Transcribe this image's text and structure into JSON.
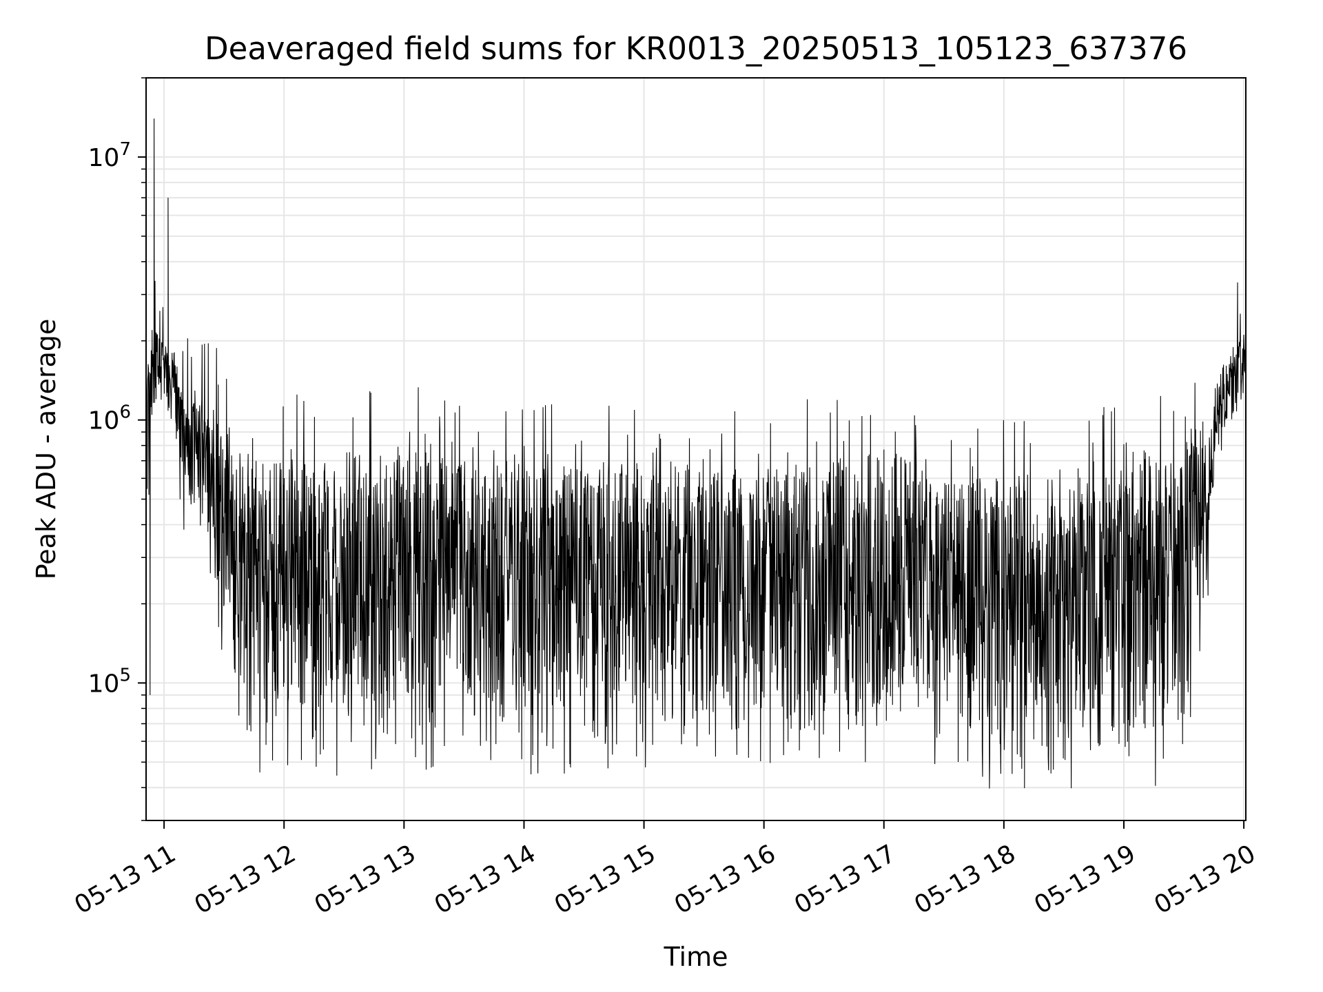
{
  "chart_data": {
    "type": "line",
    "title": "Deaveraged field sums for KR0013_20250513_105123_637376",
    "xlabel": "Time",
    "ylabel": "Peak ADU - average",
    "yscale": "log",
    "xlim": [
      "2025-05-13 10:51",
      "2025-05-13 20:01"
    ],
    "ylim": [
      30000,
      20000000
    ],
    "grid": true,
    "line_color": "#000000",
    "x_ticks": [
      {
        "time": "2025-05-13 11:00",
        "label": "05-13 11"
      },
      {
        "time": "2025-05-13 12:00",
        "label": "05-13 12"
      },
      {
        "time": "2025-05-13 13:00",
        "label": "05-13 13"
      },
      {
        "time": "2025-05-13 14:00",
        "label": "05-13 14"
      },
      {
        "time": "2025-05-13 15:00",
        "label": "05-13 15"
      },
      {
        "time": "2025-05-13 16:00",
        "label": "05-13 16"
      },
      {
        "time": "2025-05-13 17:00",
        "label": "05-13 17"
      },
      {
        "time": "2025-05-13 18:00",
        "label": "05-13 18"
      },
      {
        "time": "2025-05-13 19:00",
        "label": "05-13 19"
      },
      {
        "time": "2025-05-13 20:00",
        "label": "05-13 20"
      }
    ],
    "y_ticks": [
      {
        "value": 100000,
        "base": "10",
        "exp": "5"
      },
      {
        "value": 1000000,
        "base": "10",
        "exp": "6"
      },
      {
        "value": 10000000,
        "base": "10",
        "exp": "7"
      }
    ],
    "series": [
      {
        "x": [
          "2025-05-13 10:51",
          "2025-05-13 10:52",
          "2025-05-13 10:53",
          "2025-05-13 10:54",
          "2025-05-13 10:55",
          "2025-05-13 10:56",
          "2025-05-13 10:57",
          "2025-05-13 10:58",
          "2025-05-13 11:00",
          "2025-05-13 11:02",
          "2025-05-13 11:04",
          "2025-05-13 11:06",
          "2025-05-13 11:08",
          "2025-05-13 11:10",
          "2025-05-13 11:15",
          "2025-05-13 11:20",
          "2025-05-13 11:25",
          "2025-05-13 11:30",
          "2025-05-13 11:35",
          "2025-05-13 11:40",
          "2025-05-13 11:45",
          "2025-05-13 11:50",
          "2025-05-13 11:55",
          "2025-05-13 12:00",
          "2025-05-13 12:15",
          "2025-05-13 12:30",
          "2025-05-13 12:45",
          "2025-05-13 13:00",
          "2025-05-13 13:15",
          "2025-05-13 13:30",
          "2025-05-13 13:45",
          "2025-05-13 14:00",
          "2025-05-13 14:15",
          "2025-05-13 14:30",
          "2025-05-13 14:45",
          "2025-05-13 15:00",
          "2025-05-13 15:15",
          "2025-05-13 15:30",
          "2025-05-13 15:45",
          "2025-05-13 16:00",
          "2025-05-13 16:15",
          "2025-05-13 16:30",
          "2025-05-13 16:45",
          "2025-05-13 17:00",
          "2025-05-13 17:15",
          "2025-05-13 17:30",
          "2025-05-13 17:45",
          "2025-05-13 18:00",
          "2025-05-13 18:15",
          "2025-05-13 18:30",
          "2025-05-13 18:45",
          "2025-05-13 19:00",
          "2025-05-13 19:10",
          "2025-05-13 19:20",
          "2025-05-13 19:30",
          "2025-05-13 19:40",
          "2025-05-13 19:45",
          "2025-05-13 19:50",
          "2025-05-13 19:55",
          "2025-05-13 20:01"
        ],
        "values": [
          400000,
          1500000,
          90000,
          2200000,
          14000000,
          1200000,
          1500000,
          1800000,
          1600000,
          7000000,
          1800000,
          1500000,
          500000,
          1100000,
          900000,
          1000000,
          400000,
          200000,
          150000,
          100000,
          90000,
          120000,
          110000,
          100000,
          110000,
          180000,
          150000,
          120000,
          150000,
          250000,
          200000,
          100000,
          120000,
          180000,
          150000,
          110000,
          200000,
          250000,
          200000,
          150000,
          200000,
          220000,
          180000,
          200000,
          300000,
          250000,
          120000,
          100000,
          80000,
          70000,
          80000,
          70000,
          70000,
          80000,
          150000,
          500000,
          1000000,
          1200000,
          1600000,
          1500000
        ]
      }
    ],
    "envelope": {
      "x": [
        "2025-05-13 10:51",
        "2025-05-13 10:55",
        "2025-05-13 11:00",
        "2025-05-13 11:05",
        "2025-05-13 11:10",
        "2025-05-13 11:20",
        "2025-05-13 11:30",
        "2025-05-13 11:35",
        "2025-05-13 11:40",
        "2025-05-13 12:00",
        "2025-05-13 12:30",
        "2025-05-13 13:00",
        "2025-05-13 13:30",
        "2025-05-13 14:00",
        "2025-05-13 14:30",
        "2025-05-13 15:00",
        "2025-05-13 15:30",
        "2025-05-13 16:00",
        "2025-05-13 16:30",
        "2025-05-13 17:00",
        "2025-05-13 17:15",
        "2025-05-13 17:30",
        "2025-05-13 18:00",
        "2025-05-13 18:30",
        "2025-05-13 19:00",
        "2025-05-13 19:20",
        "2025-05-13 19:30",
        "2025-05-13 19:40",
        "2025-05-13 19:45",
        "2025-05-13 19:50",
        "2025-05-13 20:01"
      ],
      "upper": [
        1500000,
        2200000,
        2000000,
        1800000,
        1200000,
        1200000,
        1000000,
        900000,
        800000,
        700000,
        750000,
        800000,
        700000,
        650000,
        700000,
        700000,
        650000,
        650000,
        700000,
        800000,
        700000,
        600000,
        600000,
        600000,
        650000,
        700000,
        900000,
        1000000,
        1300000,
        1700000,
        2200000
      ],
      "lower": [
        350000,
        1100000,
        1200000,
        900000,
        500000,
        400000,
        150000,
        110000,
        60000,
        60000,
        60000,
        60000,
        75000,
        60000,
        60000,
        65000,
        75000,
        60000,
        60000,
        70000,
        100000,
        55000,
        55000,
        55000,
        55000,
        55000,
        60000,
        150000,
        600000,
        900000,
        1100000
      ]
    }
  }
}
